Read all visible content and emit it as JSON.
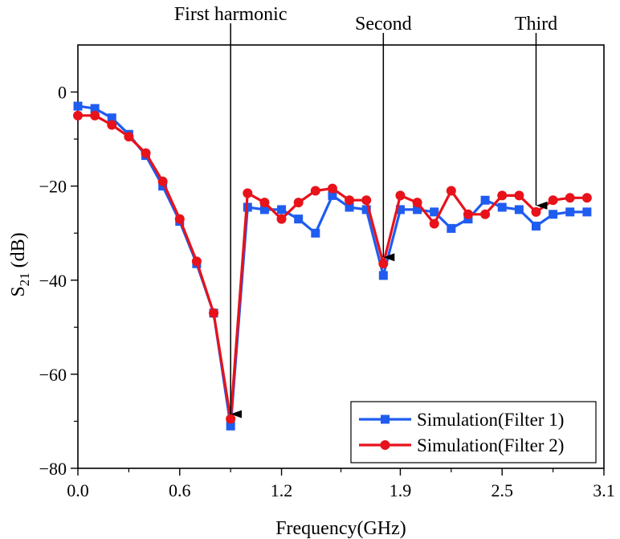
{
  "chart_data": {
    "type": "line",
    "title": "",
    "xlabel": "Frequency(GHz)",
    "ylabel": {
      "main": "S",
      "sub": "21",
      "unit": " (dB)"
    },
    "xlim": [
      0.0,
      3.1
    ],
    "ylim": [
      -80,
      10
    ],
    "xticks": [
      0.0,
      0.6,
      1.2,
      1.9,
      2.5,
      3.1
    ],
    "xtick_labels": [
      "0.0",
      "0.6",
      "1.2",
      "1.9",
      "2.5",
      "3.1"
    ],
    "yticks": [
      0,
      -20,
      -40,
      -60,
      -80
    ],
    "ytick_labels": [
      "0",
      "−20",
      "−40",
      "−60",
      "−80"
    ],
    "grid": false,
    "legend_position": "bottom-right",
    "series": [
      {
        "name": "Simulation(Filter 1)",
        "color": "#1f5cf0",
        "marker": "square",
        "x": [
          0.0,
          0.1,
          0.2,
          0.3,
          0.4,
          0.5,
          0.6,
          0.7,
          0.8,
          0.9,
          1.0,
          1.1,
          1.2,
          1.3,
          1.4,
          1.5,
          1.6,
          1.7,
          1.8,
          1.9,
          2.0,
          2.1,
          2.2,
          2.3,
          2.4,
          2.5,
          2.6,
          2.7,
          2.8,
          2.9,
          3.0
        ],
        "values": [
          -3.0,
          -3.5,
          -5.5,
          -9.0,
          -13.5,
          -20.0,
          -27.5,
          -36.5,
          -47.0,
          -71.0,
          -24.5,
          -25.0,
          -25.0,
          -27.0,
          -30.0,
          -22.0,
          -24.5,
          -25.0,
          -39.0,
          -25.0,
          -25.0,
          -25.5,
          -29.0,
          -27.0,
          -23.0,
          -24.5,
          -25.0,
          -28.5,
          -26.0,
          -25.5,
          -25.5
        ]
      },
      {
        "name": "Simulation(Filter 2)",
        "color": "#e8121a",
        "marker": "circle",
        "x": [
          0.0,
          0.1,
          0.2,
          0.3,
          0.4,
          0.5,
          0.6,
          0.7,
          0.8,
          0.9,
          1.0,
          1.1,
          1.2,
          1.3,
          1.4,
          1.5,
          1.6,
          1.7,
          1.8,
          1.9,
          2.0,
          2.1,
          2.2,
          2.3,
          2.4,
          2.5,
          2.6,
          2.7,
          2.8,
          2.9,
          3.0
        ],
        "values": [
          -5.0,
          -5.0,
          -7.0,
          -9.5,
          -13.0,
          -19.0,
          -27.0,
          -36.0,
          -47.0,
          -69.5,
          -21.5,
          -23.5,
          -27.0,
          -23.5,
          -21.0,
          -20.5,
          -23.0,
          -23.0,
          -36.5,
          -22.0,
          -23.5,
          -28.0,
          -21.0,
          -26.0,
          -26.0,
          -22.0,
          -22.0,
          -25.5,
          -23.0,
          -22.5,
          -22.5
        ]
      }
    ],
    "annotations": [
      {
        "text": "First harmonic",
        "x": 0.9,
        "y": -69.5
      },
      {
        "text": "Second",
        "x": 1.8,
        "y": -36.5
      },
      {
        "text": "Third",
        "x": 2.7,
        "y": -25.5
      }
    ]
  }
}
